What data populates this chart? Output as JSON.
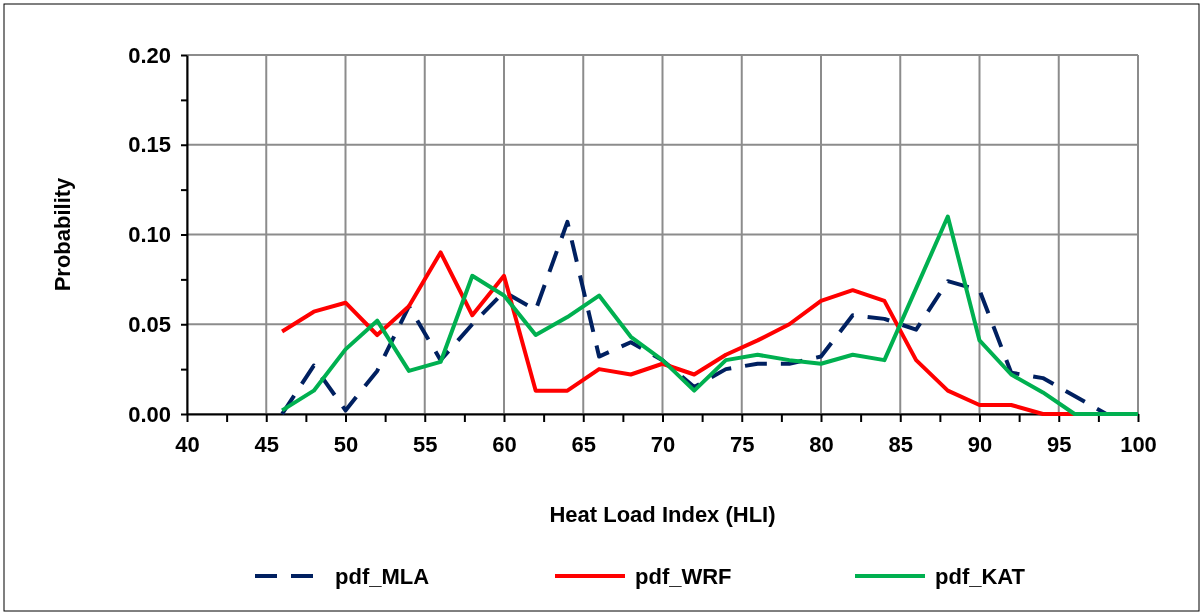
{
  "chart_data": {
    "type": "line",
    "xlabel": "Heat Load Index (HLI)",
    "ylabel": "Probability",
    "x": [
      46,
      48,
      50,
      52,
      54,
      56,
      58,
      60,
      62,
      64,
      66,
      68,
      70,
      72,
      74,
      76,
      78,
      80,
      82,
      84,
      86,
      88,
      90,
      92,
      94,
      96,
      98,
      100
    ],
    "series": [
      {
        "name": "pdf_MLA",
        "color": "#002060",
        "line_style": "dashed",
        "values": [
          0,
          0.027,
          0.002,
          0.024,
          0.06,
          0.03,
          0.05,
          0.068,
          0.058,
          0.107,
          0.032,
          0.04,
          0.03,
          0.015,
          0.025,
          0.028,
          0.028,
          0.032,
          0.055,
          0.053,
          0.047,
          0.074,
          0.069,
          0.023,
          0.02,
          0.01,
          0,
          0
        ]
      },
      {
        "name": "pdf_WRF",
        "color": "#ff0000",
        "line_style": "solid",
        "values": [
          0.046,
          0.057,
          0.062,
          0.044,
          0.06,
          0.09,
          0.055,
          0.077,
          0.013,
          0.013,
          0.025,
          0.022,
          0.028,
          0.022,
          0.033,
          0.041,
          0.05,
          0.063,
          0.069,
          0.063,
          0.03,
          0.013,
          0.005,
          0.005,
          0,
          0,
          null,
          null
        ]
      },
      {
        "name": "pdf_KAT",
        "color": "#00b050",
        "line_style": "solid",
        "values": [
          0.002,
          0.013,
          0.036,
          0.052,
          0.024,
          0.029,
          0.077,
          0.066,
          0.044,
          0.054,
          0.066,
          0.043,
          0.03,
          0.013,
          0.03,
          0.033,
          0.03,
          0.028,
          0.033,
          0.03,
          0.07,
          0.11,
          0.041,
          0.022,
          0.012,
          0,
          0,
          0
        ]
      }
    ],
    "xlim": [
      40,
      100
    ],
    "xticks": [
      40,
      {
        "value": 42.5,
        "label": null
      },
      45,
      {
        "value": 47.5,
        "label": null
      },
      50,
      {
        "value": 52.5,
        "label": null
      },
      55,
      {
        "value": 57.5,
        "label": null
      },
      60,
      {
        "value": 62.5,
        "label": null
      },
      65,
      {
        "value": 67.5,
        "label": null
      },
      70,
      {
        "value": 72.5,
        "label": null
      },
      75,
      {
        "value": 77.5,
        "label": null
      },
      80,
      {
        "value": 82.5,
        "label": null
      },
      85,
      {
        "value": 87.5,
        "label": null
      },
      90,
      {
        "value": 92.5,
        "label": null
      },
      95,
      {
        "value": 97.5,
        "label": null
      },
      100
    ],
    "ylim": [
      0,
      0.2
    ],
    "yticks": [
      {
        "value": 0,
        "label": "0.00"
      },
      {
        "value": 0.025,
        "label": null
      },
      {
        "value": 0.05,
        "label": "0.05"
      },
      {
        "value": 0.075,
        "label": null
      },
      {
        "value": 0.1,
        "label": "0.10"
      },
      {
        "value": 0.125,
        "label": null
      },
      {
        "value": 0.15,
        "label": "0.15"
      },
      {
        "value": 0.175,
        "label": null
      },
      {
        "value": 0.2,
        "label": "0.20"
      }
    ],
    "grid": true,
    "legend": "bottom",
    "marker": "none"
  }
}
